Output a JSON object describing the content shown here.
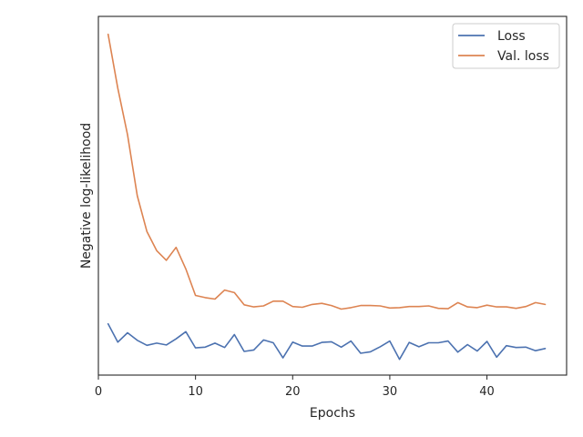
{
  "chart_data": {
    "type": "line",
    "title": "",
    "xlabel": "Epochs",
    "ylabel": "Negative log-likelihood",
    "xlim": [
      0,
      48.2
    ],
    "ylim": [
      0,
      1
    ],
    "x_ticks": [
      0,
      10,
      20,
      30,
      40
    ],
    "y_ticks": [],
    "grid": false,
    "legend_position": "top-right",
    "series": [
      {
        "name": "Loss",
        "color": "#4c72b0",
        "x": [
          1,
          2,
          3,
          4,
          5,
          6,
          7,
          8,
          9,
          10,
          11,
          12,
          13,
          14,
          15,
          16,
          17,
          18,
          19,
          20,
          21,
          22,
          23,
          24,
          25,
          26,
          27,
          28,
          29,
          30,
          31,
          32,
          33,
          34,
          35,
          36,
          37,
          38,
          39,
          40,
          41,
          42,
          43,
          44,
          45,
          46
        ],
        "y": [
          0.143,
          0.092,
          0.118,
          0.097,
          0.083,
          0.089,
          0.084,
          0.101,
          0.121,
          0.076,
          0.078,
          0.089,
          0.077,
          0.113,
          0.066,
          0.07,
          0.098,
          0.09,
          0.048,
          0.092,
          0.081,
          0.081,
          0.091,
          0.093,
          0.078,
          0.095,
          0.061,
          0.065,
          0.079,
          0.095,
          0.044,
          0.091,
          0.079,
          0.09,
          0.09,
          0.095,
          0.064,
          0.085,
          0.067,
          0.094,
          0.05,
          0.082,
          0.077,
          0.078,
          0.068,
          0.074
        ]
      },
      {
        "name": "Val. loss",
        "color": "#dd8452",
        "x": [
          1,
          2,
          3,
          4,
          5,
          6,
          7,
          8,
          9,
          10,
          11,
          12,
          13,
          14,
          15,
          16,
          17,
          18,
          19,
          20,
          21,
          22,
          23,
          24,
          25,
          26,
          27,
          28,
          29,
          30,
          31,
          32,
          33,
          34,
          35,
          36,
          37,
          38,
          39,
          40,
          41,
          42,
          43,
          44,
          45,
          46
        ],
        "y": [
          0.95,
          0.8,
          0.67,
          0.5,
          0.4,
          0.347,
          0.32,
          0.356,
          0.296,
          0.222,
          0.216,
          0.212,
          0.237,
          0.23,
          0.196,
          0.19,
          0.193,
          0.206,
          0.206,
          0.191,
          0.189,
          0.197,
          0.2,
          0.194,
          0.184,
          0.188,
          0.194,
          0.194,
          0.193,
          0.187,
          0.188,
          0.191,
          0.191,
          0.193,
          0.186,
          0.185,
          0.202,
          0.19,
          0.188,
          0.195,
          0.19,
          0.19,
          0.186,
          0.191,
          0.202,
          0.197
        ]
      }
    ]
  }
}
